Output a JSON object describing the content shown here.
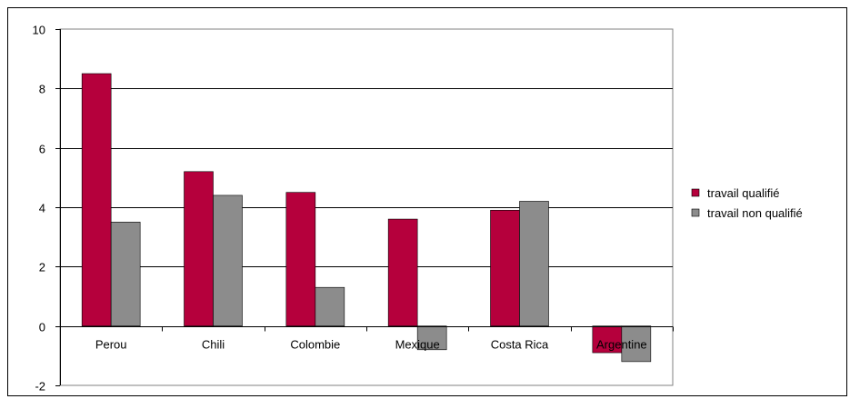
{
  "chart_data": {
    "type": "bar",
    "categories": [
      "Perou",
      "Chili",
      "Colombie",
      "Mexique",
      "Costa Rica",
      "Argentine"
    ],
    "series": [
      {
        "name": "travail qualifié",
        "values": [
          8.5,
          5.2,
          4.5,
          3.6,
          3.9,
          -0.9
        ],
        "color": "#b5003c"
      },
      {
        "name": "travail non qualifié",
        "values": [
          3.5,
          4.4,
          1.3,
          -0.8,
          4.2,
          -1.2
        ],
        "color": "#8c8c8c"
      }
    ],
    "ylim": [
      -2,
      10
    ],
    "yticks": [
      -2,
      0,
      2,
      4,
      6,
      8,
      10
    ],
    "ytick_labels": [
      "-2",
      "0",
      "2",
      "4",
      "6",
      "8",
      "10"
    ],
    "grid": true,
    "legend_position": "right",
    "title": "",
    "xlabel": "",
    "ylabel": ""
  }
}
